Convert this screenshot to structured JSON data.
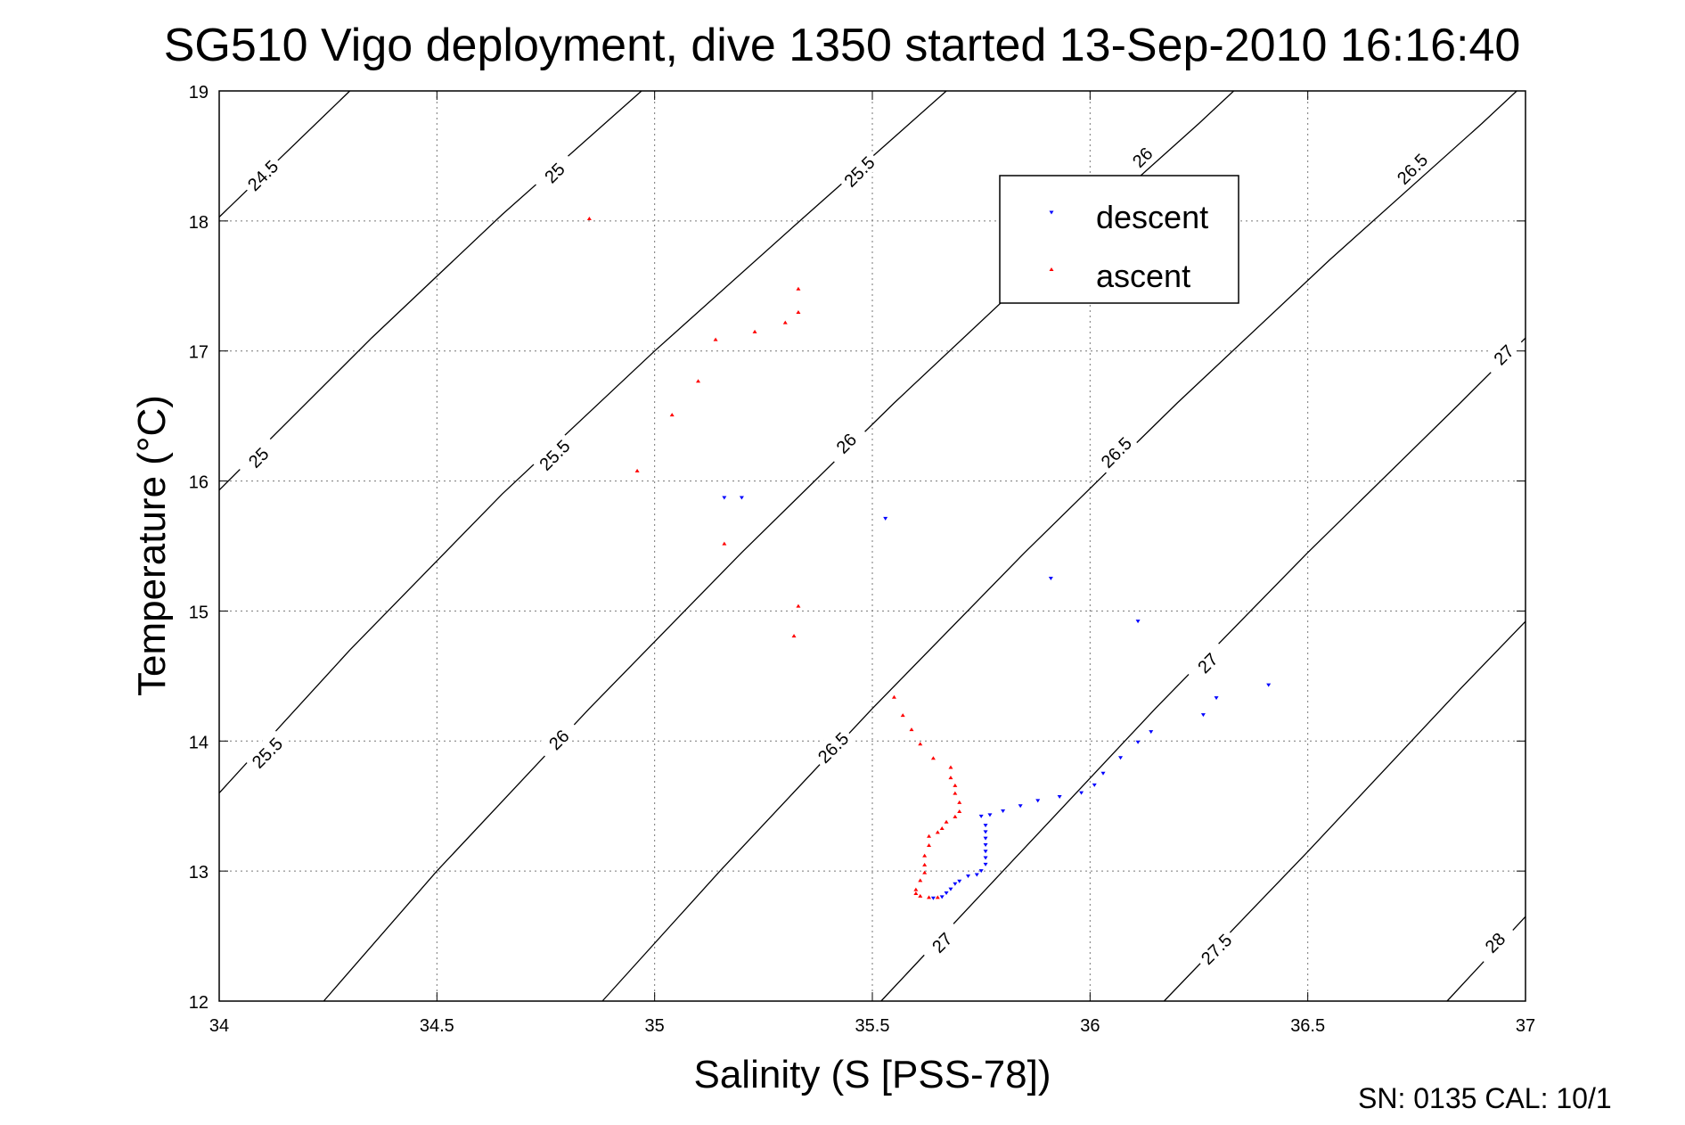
{
  "chart_data": {
    "type": "scatter",
    "title": "SG510 Vigo deployment, dive 1350 started 13-Sep-2010 16:16:40",
    "xlabel": "Salinity (S [PSS-78])",
    "ylabel": "Temperature (°C)",
    "xlim": [
      34,
      37
    ],
    "ylim": [
      12,
      19
    ],
    "x_ticks": [
      "34",
      "34.5",
      "35",
      "35.5",
      "36",
      "36.5",
      "37"
    ],
    "y_ticks": [
      "12",
      "13",
      "14",
      "15",
      "16",
      "17",
      "18",
      "19"
    ],
    "grid": true,
    "legend_position": "top-right",
    "footer_text": "SN: 0135  CAL: 10/1",
    "series": [
      {
        "name": "descent",
        "color": "#0000ff",
        "marker": "triangle-down",
        "points": [
          [
            35.16,
            15.87
          ],
          [
            35.2,
            15.87
          ],
          [
            35.53,
            15.71
          ],
          [
            35.91,
            15.25
          ],
          [
            36.11,
            14.92
          ],
          [
            36.41,
            14.43
          ],
          [
            36.29,
            14.33
          ],
          [
            36.26,
            14.2
          ],
          [
            36.14,
            14.07
          ],
          [
            36.11,
            13.99
          ],
          [
            36.07,
            13.87
          ],
          [
            36.03,
            13.75
          ],
          [
            36.01,
            13.66
          ],
          [
            35.98,
            13.6
          ],
          [
            35.93,
            13.57
          ],
          [
            35.88,
            13.54
          ],
          [
            35.84,
            13.5
          ],
          [
            35.8,
            13.46
          ],
          [
            35.77,
            13.43
          ],
          [
            35.75,
            13.42
          ],
          [
            35.76,
            13.35
          ],
          [
            35.76,
            13.3
          ],
          [
            35.76,
            13.25
          ],
          [
            35.76,
            13.2
          ],
          [
            35.76,
            13.15
          ],
          [
            35.76,
            13.1
          ],
          [
            35.76,
            13.05
          ],
          [
            35.75,
            13.0
          ],
          [
            35.74,
            12.97
          ],
          [
            35.72,
            12.96
          ],
          [
            35.7,
            12.92
          ],
          [
            35.69,
            12.9
          ],
          [
            35.68,
            12.86
          ],
          [
            35.67,
            12.83
          ],
          [
            35.66,
            12.8
          ],
          [
            35.64,
            12.79
          ]
        ]
      },
      {
        "name": "ascent",
        "color": "#ff0000",
        "marker": "triangle-up",
        "points": [
          [
            34.85,
            18.02
          ],
          [
            35.33,
            17.48
          ],
          [
            35.33,
            17.3
          ],
          [
            35.3,
            17.22
          ],
          [
            35.23,
            17.15
          ],
          [
            35.14,
            17.09
          ],
          [
            35.1,
            16.77
          ],
          [
            35.04,
            16.51
          ],
          [
            34.96,
            16.08
          ],
          [
            35.16,
            15.52
          ],
          [
            35.33,
            15.04
          ],
          [
            35.32,
            14.81
          ],
          [
            35.55,
            14.34
          ],
          [
            35.57,
            14.2
          ],
          [
            35.59,
            14.09
          ],
          [
            35.61,
            13.98
          ],
          [
            35.64,
            13.87
          ],
          [
            35.68,
            13.8
          ],
          [
            35.68,
            13.72
          ],
          [
            35.69,
            13.66
          ],
          [
            35.69,
            13.6
          ],
          [
            35.7,
            13.53
          ],
          [
            35.7,
            13.46
          ],
          [
            35.69,
            13.42
          ],
          [
            35.67,
            13.38
          ],
          [
            35.66,
            13.33
          ],
          [
            35.65,
            13.3
          ],
          [
            35.63,
            13.27
          ],
          [
            35.63,
            13.2
          ],
          [
            35.62,
            13.12
          ],
          [
            35.62,
            13.05
          ],
          [
            35.62,
            12.99
          ],
          [
            35.61,
            12.93
          ],
          [
            35.6,
            12.86
          ],
          [
            35.6,
            12.83
          ],
          [
            35.61,
            12.81
          ],
          [
            35.63,
            12.8
          ],
          [
            35.65,
            12.8
          ]
        ]
      }
    ],
    "isopycnals": [
      {
        "label": "24.5",
        "points": [
          [
            34.0,
            18.03
          ],
          [
            34.3,
            19.0
          ]
        ],
        "labels_at": [
          [
            34.1,
            18.35
          ]
        ]
      },
      {
        "label": "25",
        "points": [
          [
            34.0,
            15.93
          ],
          [
            34.35,
            17.1
          ],
          [
            34.65,
            18.05
          ],
          [
            34.97,
            19.0
          ]
        ],
        "labels_at": [
          [
            34.09,
            16.18
          ],
          [
            34.77,
            18.37
          ]
        ]
      },
      {
        "label": "25.5",
        "points": [
          [
            34.0,
            13.6
          ],
          [
            34.3,
            14.7
          ],
          [
            34.65,
            15.9
          ],
          [
            35.0,
            17.0
          ],
          [
            35.35,
            18.05
          ],
          [
            35.67,
            19.0
          ]
        ],
        "labels_at": [
          [
            34.11,
            13.91
          ],
          [
            34.77,
            16.2
          ],
          [
            35.47,
            18.38
          ]
        ]
      },
      {
        "label": "26",
        "points": [
          [
            34.24,
            12.0
          ],
          [
            34.5,
            13.0
          ],
          [
            34.85,
            14.25
          ],
          [
            35.2,
            15.45
          ],
          [
            35.55,
            16.6
          ],
          [
            35.9,
            17.7
          ],
          [
            36.25,
            18.75
          ],
          [
            36.33,
            19.0
          ]
        ],
        "labels_at": [
          [
            34.78,
            14.01
          ],
          [
            35.44,
            16.29
          ],
          [
            36.12,
            18.49
          ]
        ]
      },
      {
        "label": "26.5",
        "points": [
          [
            34.88,
            12.0
          ],
          [
            35.15,
            13.0
          ],
          [
            35.5,
            14.25
          ],
          [
            35.85,
            15.45
          ],
          [
            36.2,
            16.6
          ],
          [
            36.55,
            17.7
          ],
          [
            36.9,
            18.75
          ],
          [
            36.98,
            19.0
          ]
        ],
        "labels_at": [
          [
            35.41,
            13.95
          ],
          [
            36.06,
            16.22
          ],
          [
            36.74,
            18.4
          ]
        ]
      },
      {
        "label": "27",
        "points": [
          [
            35.52,
            12.0
          ],
          [
            35.8,
            13.0
          ],
          [
            36.15,
            14.25
          ],
          [
            36.5,
            15.45
          ],
          [
            36.85,
            16.6
          ],
          [
            37.0,
            17.1
          ]
        ],
        "labels_at": [
          [
            35.66,
            12.45
          ],
          [
            36.27,
            14.6
          ],
          [
            36.95,
            16.97
          ]
        ]
      },
      {
        "label": "27.5",
        "points": [
          [
            36.17,
            12.0
          ],
          [
            36.5,
            13.15
          ],
          [
            36.85,
            14.4
          ],
          [
            37.0,
            14.92
          ]
        ],
        "labels_at": [
          [
            36.29,
            12.4
          ]
        ]
      },
      {
        "label": "28",
        "points": [
          [
            36.82,
            12.0
          ],
          [
            37.0,
            12.65
          ]
        ],
        "labels_at": [
          [
            36.93,
            12.45
          ]
        ]
      }
    ]
  }
}
